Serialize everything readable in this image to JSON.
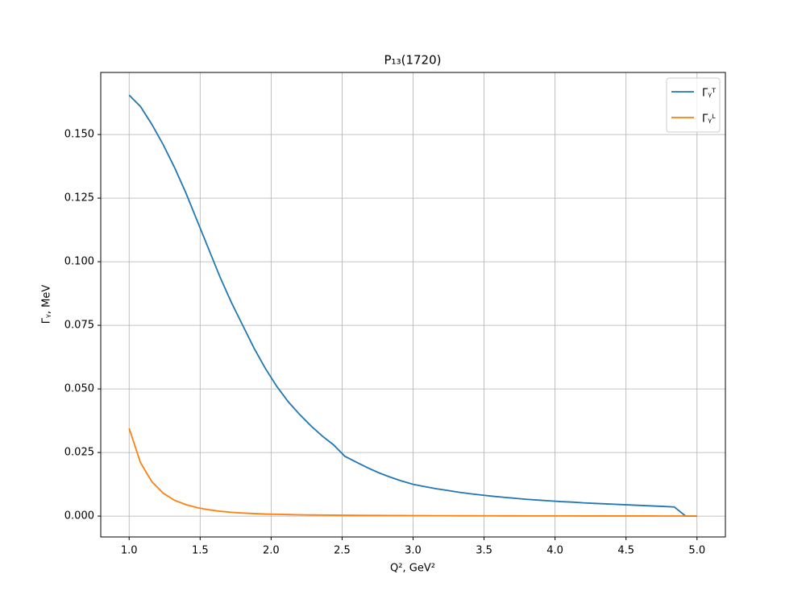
{
  "chart_data": {
    "type": "line",
    "title": "P₁₃(1720)",
    "x_label": "Q², GeV²",
    "y_label": "Γᵧ, MeV",
    "x": [
      1.0,
      1.08,
      1.16,
      1.24,
      1.32,
      1.4,
      1.48,
      1.56,
      1.64,
      1.72,
      1.8,
      1.88,
      1.96,
      2.04,
      2.12,
      2.2,
      2.28,
      2.36,
      2.44,
      2.52,
      2.6,
      2.68,
      2.76,
      2.84,
      2.92,
      3.0,
      3.08,
      3.16,
      3.24,
      3.32,
      3.4,
      3.48,
      3.56,
      3.64,
      3.72,
      3.8,
      3.88,
      3.96,
      4.04,
      4.12,
      4.2,
      4.28,
      4.36,
      4.44,
      4.52,
      4.6,
      4.68,
      4.76,
      4.84,
      4.92,
      5.0
    ],
    "series": [
      {
        "name": "Γᵧᵀ",
        "color": "#1f77b4",
        "values": [
          0.1655,
          0.161,
          0.154,
          0.146,
          0.137,
          0.127,
          0.116,
          0.105,
          0.094,
          0.084,
          0.075,
          0.066,
          0.058,
          0.051,
          0.045,
          0.04,
          0.0355,
          0.0315,
          0.028,
          0.0235,
          0.0212,
          0.019,
          0.017,
          0.0153,
          0.0138,
          0.0125,
          0.0116,
          0.0108,
          0.0101,
          0.0094,
          0.0088,
          0.0083,
          0.0078,
          0.0074,
          0.007,
          0.0066,
          0.0063,
          0.006,
          0.0057,
          0.0055,
          0.0052,
          0.005,
          0.0048,
          0.0046,
          0.0044,
          0.0042,
          0.004,
          0.0038,
          0.0036,
          0,
          0
        ]
      },
      {
        "name": "Γᵧᴸ",
        "color": "#ff7f0e",
        "values": [
          0.0345,
          0.021,
          0.0135,
          0.009,
          0.0062,
          0.0045,
          0.0033,
          0.0025,
          0.0019,
          0.0015,
          0.0012,
          0.001,
          0.0008,
          0.0007,
          0.0006,
          0.0005,
          0.00045,
          0.0004,
          0.00036,
          0.00032,
          0.00029,
          0.00026,
          0.00024,
          0.00022,
          0.0002,
          0.00018,
          0.00017,
          0.00015,
          0.00014,
          0.00013,
          0.00012,
          0.00011,
          0.0001,
          9e-05,
          9e-05,
          8e-05,
          7e-05,
          7e-05,
          6e-05,
          6e-05,
          5e-05,
          5e-05,
          5e-05,
          4e-05,
          4e-05,
          4e-05,
          4e-05,
          3e-05,
          3e-05,
          3e-05,
          3e-05
        ]
      }
    ],
    "xlim": [
      0.8,
      5.2
    ],
    "ylim": [
      -0.0082,
      0.1744
    ],
    "xticks": [
      {
        "value": 1.0,
        "label": "1.0"
      },
      1.5,
      {
        "value": 2.0,
        "label": "2.0"
      },
      2.5,
      {
        "value": 3.0,
        "label": "3.0"
      },
      3.5,
      {
        "value": 4.0,
        "label": "4.0"
      },
      4.5,
      {
        "value": 5.0,
        "label": "5.0"
      }
    ],
    "yticks": [
      {
        "value": 0,
        "label": "0.000"
      },
      {
        "value": 0.025,
        "label": "0.025"
      },
      {
        "value": 0.05,
        "label": "0.050"
      },
      {
        "value": 0.075,
        "label": "0.075"
      },
      {
        "value": 0.1,
        "label": "0.100"
      },
      {
        "value": 0.125,
        "label": "0.125"
      },
      {
        "value": 0.15,
        "label": "0.150"
      }
    ],
    "grid": true,
    "legend": "upper-right"
  }
}
